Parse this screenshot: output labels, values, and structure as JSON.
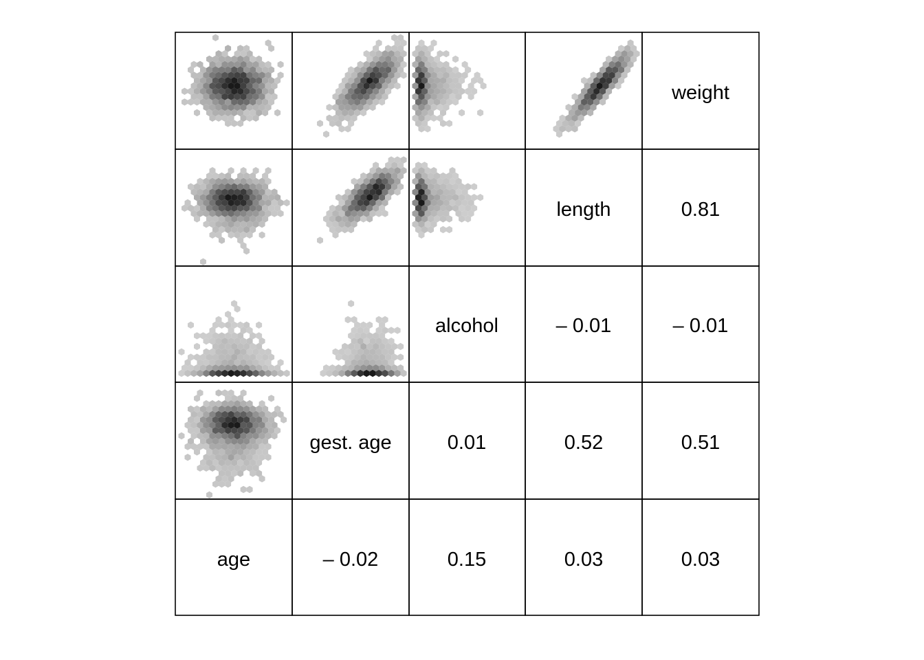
{
  "chart_data": {
    "type": "scatterplot-matrix",
    "variables": [
      "age",
      "gest. age",
      "alcohol",
      "length",
      "weight"
    ],
    "diagonal_labels": [
      "age",
      "gest. age",
      "alcohol",
      "length",
      "weight"
    ],
    "upper_panel": "correlation",
    "lower_panel": "hexbin density",
    "correlations": [
      {
        "row": "age",
        "col": "gest. age",
        "label": "– 0.02",
        "value": -0.02
      },
      {
        "row": "age",
        "col": "alcohol",
        "label": "0.15",
        "value": 0.15
      },
      {
        "row": "age",
        "col": "length",
        "label": "0.03",
        "value": 0.03
      },
      {
        "row": "age",
        "col": "weight",
        "label": "0.03",
        "value": 0.03
      },
      {
        "row": "gest. age",
        "col": "alcohol",
        "label": "0.01",
        "value": 0.01
      },
      {
        "row": "gest. age",
        "col": "length",
        "label": "0.52",
        "value": 0.52
      },
      {
        "row": "gest. age",
        "col": "weight",
        "label": "0.51",
        "value": 0.51
      },
      {
        "row": "alcohol",
        "col": "length",
        "label": "– 0.01",
        "value": -0.01
      },
      {
        "row": "alcohol",
        "col": "weight",
        "label": "– 0.01",
        "value": -0.01
      },
      {
        "row": "length",
        "col": "weight",
        "label": "0.81",
        "value": 0.81
      }
    ],
    "colors": {
      "low_density": "#d3d3d3",
      "high_density": "#1a1a1a",
      "border": "#000000"
    }
  }
}
